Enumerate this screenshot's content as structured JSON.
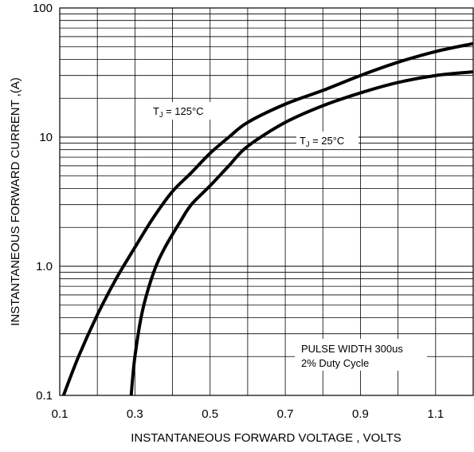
{
  "chart_data": {
    "type": "line",
    "title": "",
    "xlabel": "INSTANTANEOUS FORWARD VOLTAGE , VOLTS",
    "ylabel": "INSTANTANEOUS  FORWARD CURRENT ,(A)",
    "xlim": [
      0.1,
      1.2
    ],
    "ylim": [
      0.1,
      100
    ],
    "yscale": "log",
    "grid": true,
    "x_tick_labels": [
      {
        "value": 0.1,
        "label": "0.1"
      },
      {
        "value": 0.3,
        "label": "0.3"
      },
      {
        "value": 0.5,
        "label": "0.5"
      },
      {
        "value": 0.7,
        "label": "0.7"
      },
      {
        "value": 0.9,
        "label": "0.9"
      },
      {
        "value": 1.1,
        "label": "1.1"
      }
    ],
    "y_tick_labels": [
      {
        "value": 0.1,
        "label": "0.1"
      },
      {
        "value": 1,
        "label": "1.0"
      },
      {
        "value": 10,
        "label": "10"
      },
      {
        "value": 100,
        "label": "100"
      }
    ],
    "series": [
      {
        "name": "T_J = 125°C",
        "label_main": "T",
        "label_sub": "J",
        "label_rest": " = 125°C",
        "points": [
          [
            0.11,
            0.1
          ],
          [
            0.15,
            0.2
          ],
          [
            0.2,
            0.42
          ],
          [
            0.25,
            0.8
          ],
          [
            0.3,
            1.4
          ],
          [
            0.35,
            2.4
          ],
          [
            0.4,
            3.8
          ],
          [
            0.45,
            5.3
          ],
          [
            0.5,
            7.5
          ],
          [
            0.55,
            10
          ],
          [
            0.6,
            13
          ],
          [
            0.7,
            18
          ],
          [
            0.8,
            23
          ],
          [
            0.9,
            30
          ],
          [
            1.0,
            38
          ],
          [
            1.1,
            46
          ],
          [
            1.2,
            53
          ]
        ]
      },
      {
        "name": "T_J = 25°C",
        "label_main": "T",
        "label_sub": "J",
        "label_rest": " = 25°C",
        "points": [
          [
            0.29,
            0.1
          ],
          [
            0.3,
            0.2
          ],
          [
            0.32,
            0.45
          ],
          [
            0.35,
            0.9
          ],
          [
            0.38,
            1.4
          ],
          [
            0.42,
            2.2
          ],
          [
            0.45,
            3.0
          ],
          [
            0.5,
            4.2
          ],
          [
            0.55,
            6
          ],
          [
            0.6,
            8.5
          ],
          [
            0.7,
            13
          ],
          [
            0.8,
            17.5
          ],
          [
            0.9,
            22
          ],
          [
            1.0,
            26.5
          ],
          [
            1.1,
            30
          ],
          [
            1.2,
            32
          ]
        ]
      }
    ],
    "annotations": [
      {
        "text": "PULSE WIDTH 300us"
      },
      {
        "text": "2% Duty Cycle"
      }
    ]
  }
}
